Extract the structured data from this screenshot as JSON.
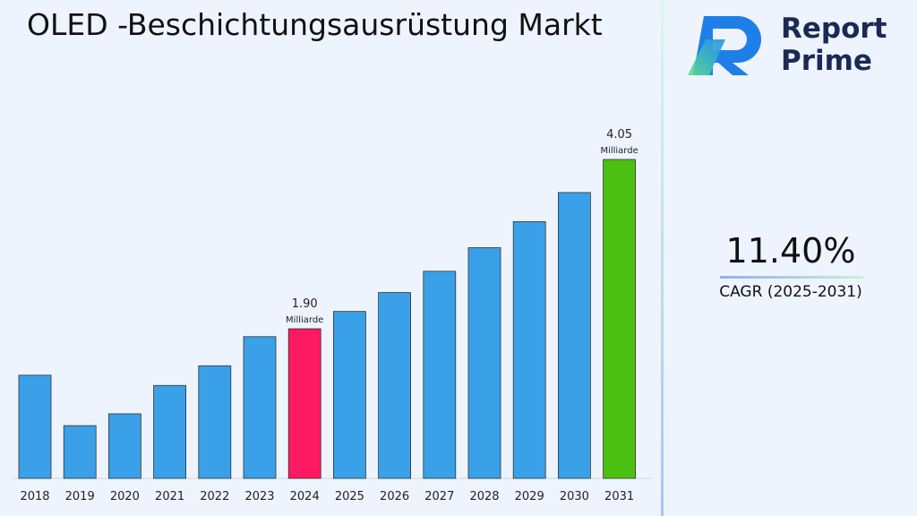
{
  "title": "OLED -Beschichtungsausrüstung Markt",
  "brand": {
    "line1": "Report",
    "line2": "Prime"
  },
  "cagr": {
    "value": "11.40%",
    "label": "CAGR (2025-2031)"
  },
  "colors": {
    "default_bar": "#3aa0e8",
    "highlight_2024": "#fc1a62",
    "highlight_2031": "#4cc010",
    "background": "#edf4fd"
  },
  "chart_data": {
    "type": "bar",
    "title": "OLED -Beschichtungsausrüstung Markt",
    "xlabel": "",
    "ylabel": "",
    "categories": [
      "2018",
      "2019",
      "2020",
      "2021",
      "2022",
      "2023",
      "2024",
      "2025",
      "2026",
      "2027",
      "2028",
      "2029",
      "2030",
      "2031"
    ],
    "values": [
      1.31,
      0.67,
      0.82,
      1.18,
      1.43,
      1.8,
      1.9,
      2.12,
      2.36,
      2.63,
      2.93,
      3.26,
      3.63,
      4.05
    ],
    "units": "Milliarde",
    "ylim": [
      0,
      4.05
    ],
    "grid": false,
    "annotations": [
      {
        "category": "2024",
        "value": "1.90",
        "unit": "Milliarde"
      },
      {
        "category": "2031",
        "value": "4.05",
        "unit": "Milliarde"
      }
    ]
  }
}
